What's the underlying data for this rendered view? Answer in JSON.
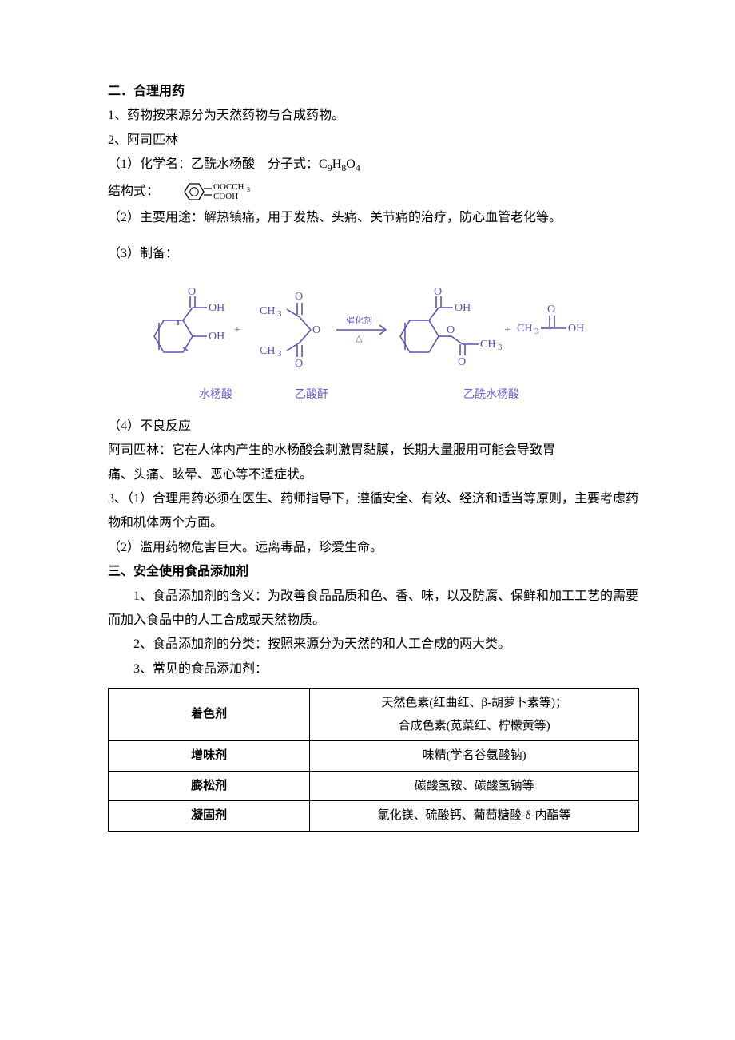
{
  "section2": {
    "title": "二．合理用药",
    "p1": "1、药物按来源分为天然药物与合成药物。",
    "p2": "2、阿司匹林",
    "p2_1a": "（1）化学名：乙酰水杨酸　分子式：C",
    "p2_1_C": "9",
    "p2_1_H": "H",
    "p2_1_Hs": "8",
    "p2_1_O": "O",
    "p2_1_Os": "4",
    "structlabel": "结构式：",
    "p2_2": "（2）主要用途：解热镇痛，用于发热、头痛、关节痛的治疗，防心血管老化等。",
    "p2_3": "（3）制备：",
    "cap1": "水杨酸",
    "cap2": "乙酸酐",
    "cap3": "乙酰水杨酸",
    "arrow_top": "催化剂",
    "arrow_bot": "△",
    "p2_4h": "（4）不良反应",
    "p2_4a": "阿司匹林：它在人体内产生的水杨酸会刺激胃黏膜，长期大量服用可能会导致胃",
    "p2_4b": "痛、头痛、眩晕、恶心等不适症状。",
    "p3a": "3、（1）合理用药必须在医生、药师指导下，遵循安全、有效、经济和适当等原则，主要考虑药物和机体两个方面。",
    "p3b": "（2）滥用药物危害巨大。远离毒品，珍爱生命。"
  },
  "section3": {
    "title": "三、安全使用食品添加剂",
    "p1": "1、食品添加剂的含义：为改善食品品质和色、香、味，以及防腐、保鲜和加工工艺的需要而加入食品中的人工合成或天然物质。",
    "p2": "2、食品添加剂的分类：按照来源分为天然的和人工合成的两大类。",
    "p3": "3、常见的食品添加剂："
  },
  "table": {
    "rows": [
      [
        "着色剂",
        "天然色素(红曲红、β-胡萝卜素等)；\n合成色素(苋菜红、柠檬黄等)"
      ],
      [
        "增味剂",
        "味精(学名谷氨酸钠)"
      ],
      [
        "膨松剂",
        "碳酸氢铵、碳酸氢钠等"
      ],
      [
        "凝固剂",
        "氯化镁、硫酸钙、葡萄糖酸-δ-内酯等"
      ]
    ]
  },
  "style": {
    "ink": "#000000",
    "chem_color": "#5b53b8",
    "bg": "#ffffff"
  }
}
